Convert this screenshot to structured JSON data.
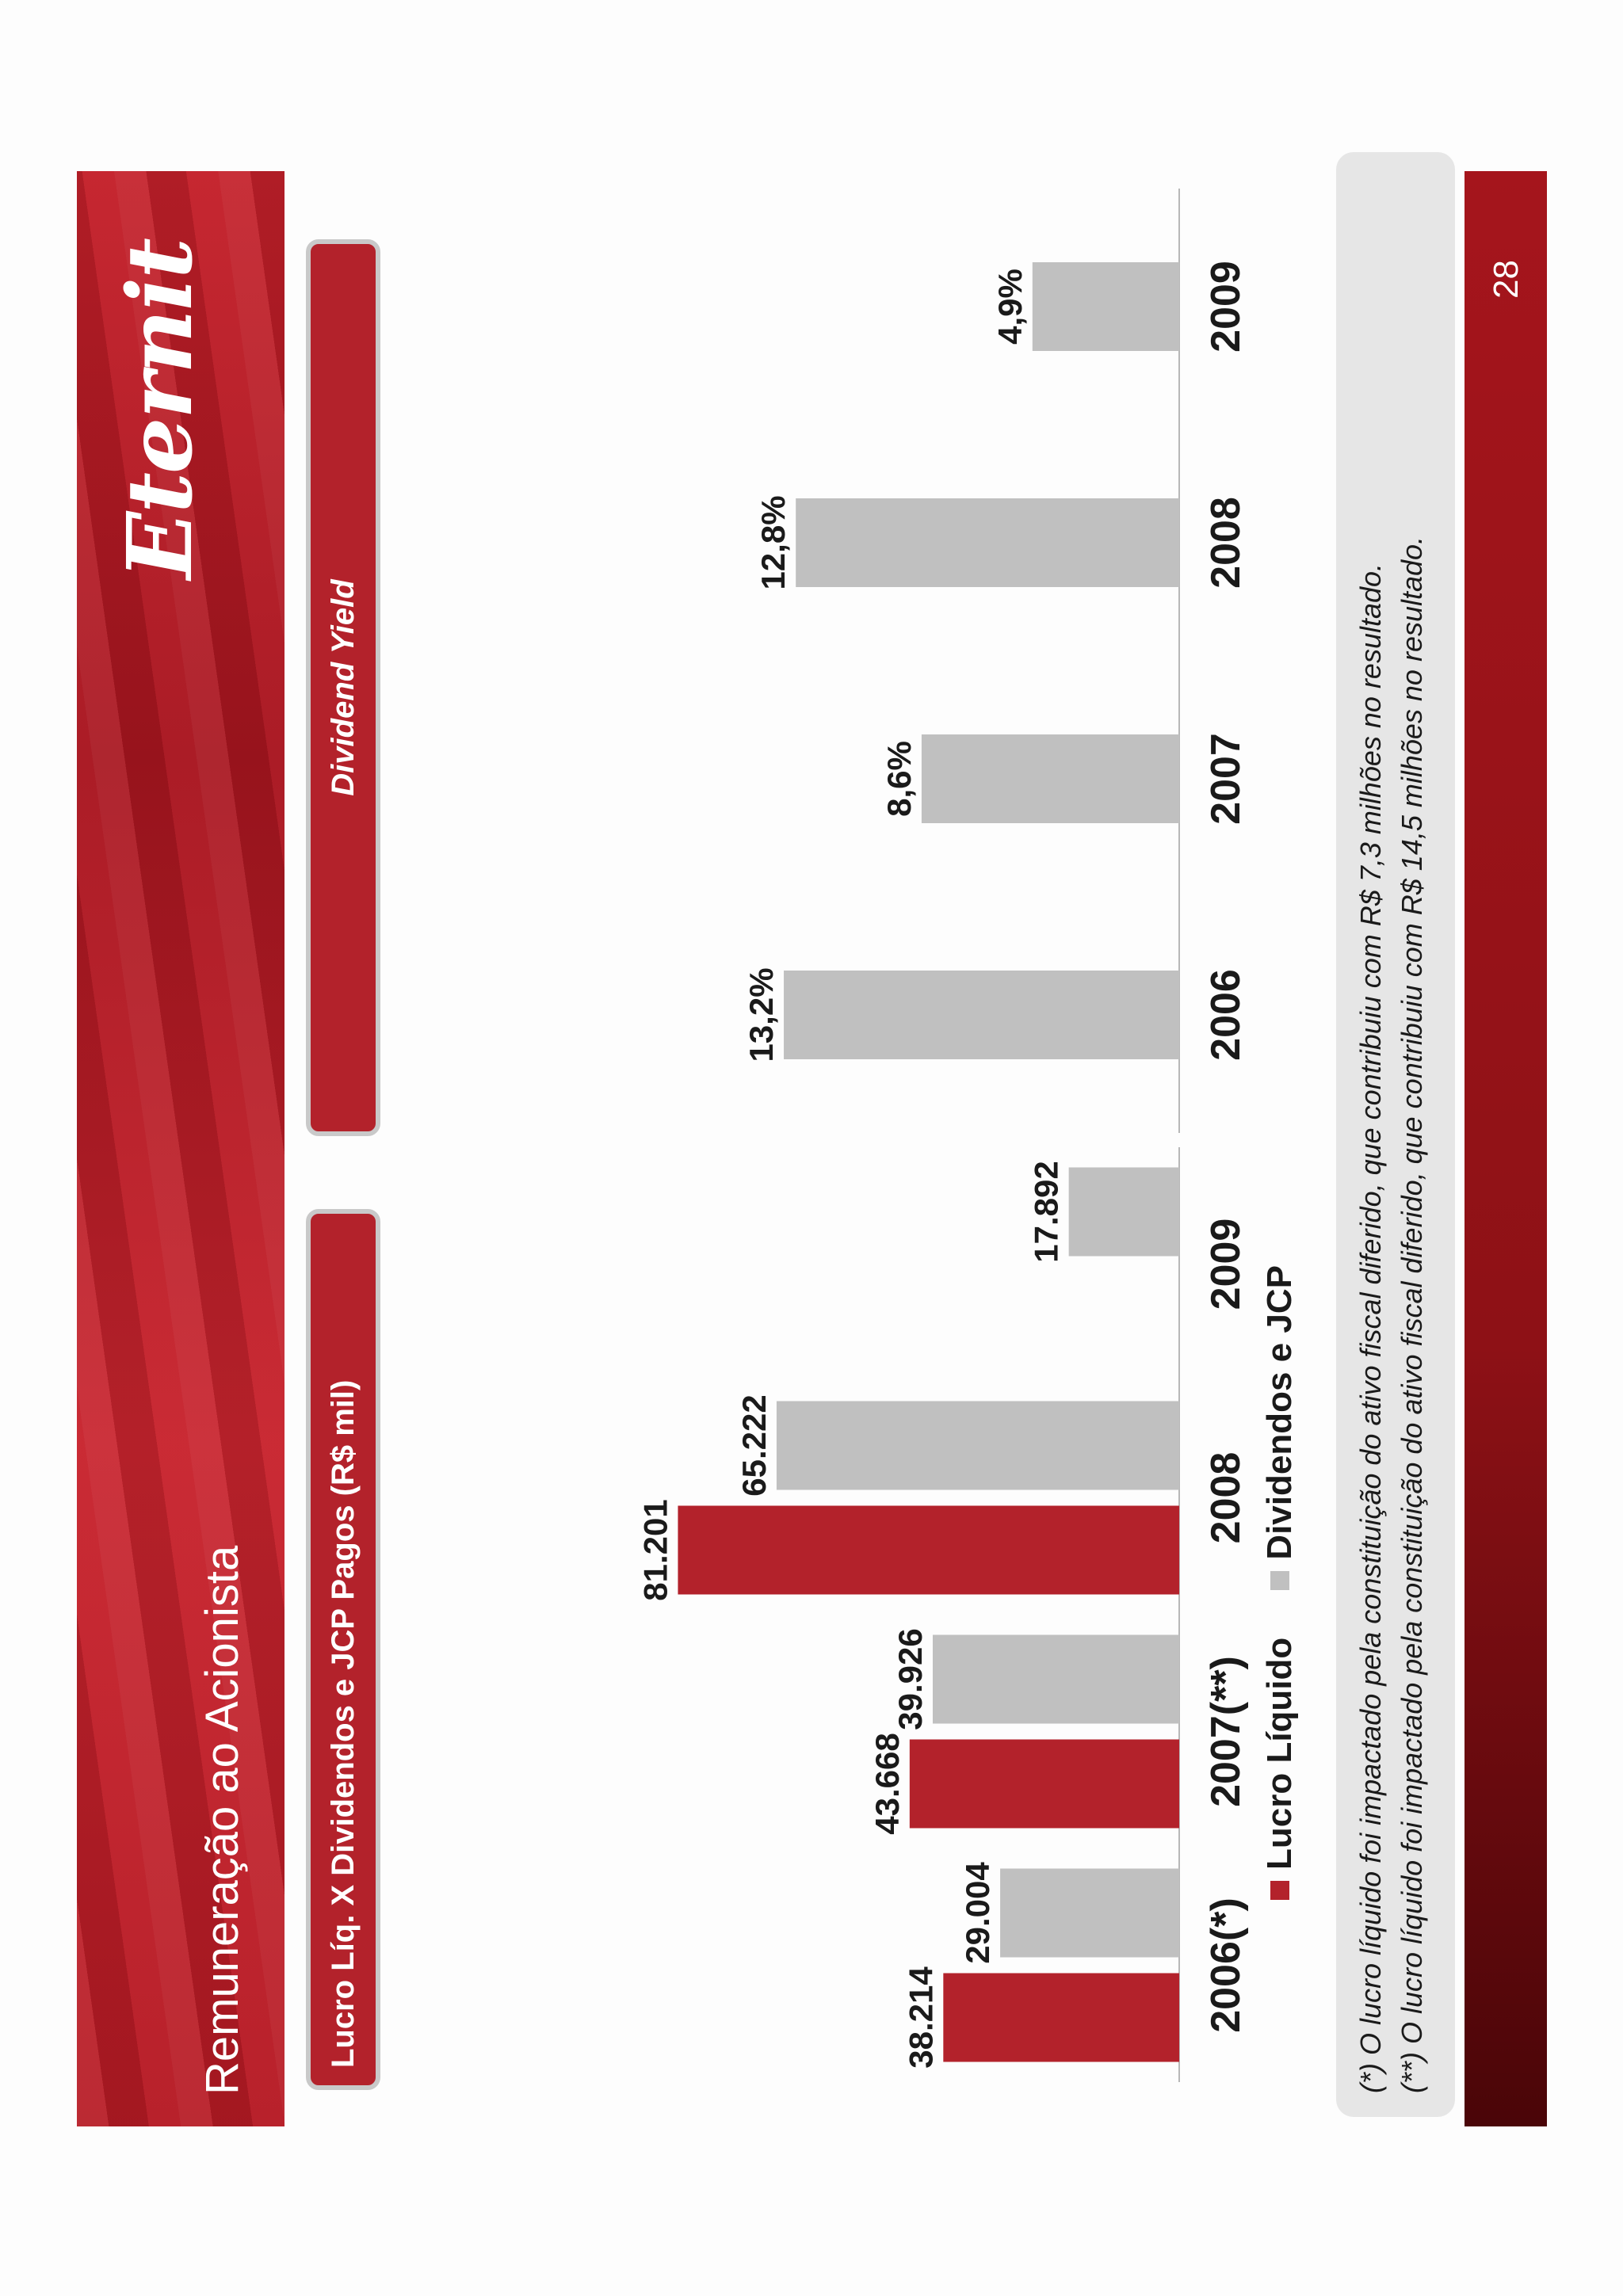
{
  "header": {
    "title": "Remuneração ao Acionista",
    "logo_text": "Eternit",
    "brand_color": "#b3222b"
  },
  "panels": {
    "left_tag": "Lucro Líq. X Dividendos e JCP Pagos (R$ mil)",
    "right_tag": "Dividend Yield"
  },
  "chart_data": [
    {
      "type": "bar",
      "categories": [
        "2006(*)",
        "2007(**)",
        "2008",
        "2009"
      ],
      "series": [
        {
          "name": "Lucro Líquido",
          "color": "#b3222b",
          "values": [
            38214,
            43668,
            81201,
            null
          ],
          "labels": [
            "38.214",
            "43.668",
            "81.201",
            ""
          ]
        },
        {
          "name": "Dividendos e JCP",
          "color": "#c0c0c0",
          "values": [
            29004,
            39926,
            65222,
            17892
          ],
          "labels": [
            "29.004",
            "39.926",
            "65.222",
            "17.892"
          ]
        }
      ],
      "legend": "bottom"
    },
    {
      "type": "bar",
      "categories": [
        "2006",
        "2007",
        "2008",
        "2009"
      ],
      "series": [
        {
          "color": "#c0c0c0",
          "values": [
            13.2,
            8.6,
            12.8,
            4.9
          ],
          "labels": [
            "13,2%",
            "8,6%",
            "12,8%",
            "4,9%"
          ]
        }
      ]
    }
  ],
  "notes": [
    "(*) O lucro líquido foi impactado pela constituição do ativo fiscal diferido, que contribuiu com R$ 7,3 milhões no resultado.",
    "(**) O lucro líquido foi impactado pela constituição do ativo fiscal diferido, que contribuiu com R$ 14,5 milhões no resultado."
  ],
  "footer": {
    "page_number": "28"
  }
}
